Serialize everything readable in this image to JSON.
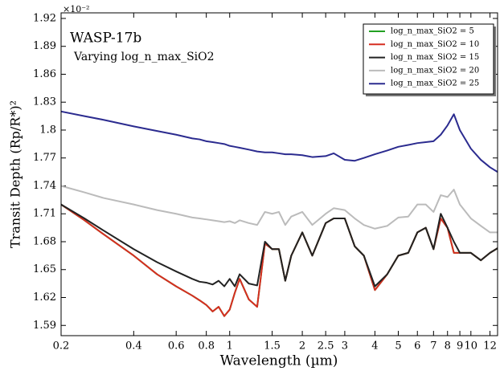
{
  "chart_data": {
    "type": "line",
    "title": "WASP-17b",
    "subtitle": "Varying log_n_max_SiO2",
    "x_label": "Wavelength (µm)",
    "y_label": "Transit Depth (Rp/R*)²",
    "y_offset_label": "×10⁻²",
    "x_scale": "log",
    "legend": "upper right",
    "grid": false,
    "x": [
      0.2,
      0.25,
      0.3,
      0.4,
      0.5,
      0.6,
      0.7,
      0.75,
      0.8,
      0.85,
      0.9,
      0.95,
      1.0,
      1.05,
      1.1,
      1.2,
      1.3,
      1.4,
      1.5,
      1.6,
      1.7,
      1.8,
      2.0,
      2.2,
      2.5,
      2.7,
      3.0,
      3.3,
      3.6,
      4.0,
      4.5,
      5.0,
      5.5,
      6.0,
      6.5,
      7.0,
      7.5,
      8.0,
      8.5,
      9.0,
      10,
      11,
      12,
      12.9
    ],
    "series": [
      {
        "name": "log_n_max_SiO2 = 5",
        "color": "#22a022",
        "values": [
          1.72,
          1.703,
          1.688,
          1.665,
          1.645,
          1.632,
          1.622,
          1.617,
          1.612,
          1.605,
          1.61,
          1.6,
          1.607,
          1.625,
          1.64,
          1.618,
          1.61,
          1.678,
          1.672,
          1.672,
          1.638,
          1.665,
          1.69,
          1.665,
          1.7,
          1.705,
          1.705,
          1.675,
          1.665,
          1.628,
          1.645,
          1.665,
          1.668,
          1.69,
          1.695,
          1.672,
          1.705,
          1.695,
          1.668,
          1.668,
          1.668,
          1.66,
          1.668,
          1.673
        ]
      },
      {
        "name": "log_n_max_SiO2 = 10",
        "color": "#d62d20",
        "values": [
          1.72,
          1.703,
          1.688,
          1.665,
          1.645,
          1.632,
          1.622,
          1.617,
          1.612,
          1.605,
          1.61,
          1.6,
          1.607,
          1.625,
          1.64,
          1.618,
          1.61,
          1.678,
          1.672,
          1.672,
          1.638,
          1.665,
          1.69,
          1.665,
          1.7,
          1.705,
          1.705,
          1.675,
          1.665,
          1.628,
          1.645,
          1.665,
          1.668,
          1.69,
          1.695,
          1.672,
          1.705,
          1.695,
          1.668,
          1.668,
          1.668,
          1.66,
          1.668,
          1.673
        ]
      },
      {
        "name": "log_n_max_SiO2 = 15",
        "color": "#222222",
        "values": [
          1.72,
          1.705,
          1.692,
          1.672,
          1.658,
          1.648,
          1.64,
          1.637,
          1.636,
          1.634,
          1.638,
          1.632,
          1.64,
          1.632,
          1.645,
          1.635,
          1.633,
          1.68,
          1.672,
          1.672,
          1.638,
          1.665,
          1.69,
          1.665,
          1.7,
          1.705,
          1.705,
          1.675,
          1.665,
          1.632,
          1.645,
          1.665,
          1.668,
          1.69,
          1.695,
          1.672,
          1.71,
          1.695,
          1.68,
          1.668,
          1.668,
          1.66,
          1.668,
          1.673
        ]
      },
      {
        "name": "log_n_max_SiO2 = 20",
        "color": "#bbbbbb",
        "values": [
          1.74,
          1.733,
          1.727,
          1.72,
          1.714,
          1.71,
          1.706,
          1.705,
          1.704,
          1.703,
          1.702,
          1.701,
          1.702,
          1.7,
          1.703,
          1.7,
          1.698,
          1.712,
          1.71,
          1.712,
          1.698,
          1.707,
          1.712,
          1.698,
          1.71,
          1.716,
          1.714,
          1.705,
          1.698,
          1.694,
          1.697,
          1.706,
          1.707,
          1.72,
          1.72,
          1.712,
          1.73,
          1.728,
          1.736,
          1.72,
          1.705,
          1.697,
          1.69,
          1.69
        ]
      },
      {
        "name": "log_n_max_SiO2 = 25",
        "color": "#2b2b8f",
        "values": [
          1.82,
          1.815,
          1.811,
          1.804,
          1.799,
          1.795,
          1.791,
          1.79,
          1.788,
          1.787,
          1.786,
          1.785,
          1.783,
          1.782,
          1.781,
          1.779,
          1.777,
          1.776,
          1.776,
          1.775,
          1.774,
          1.774,
          1.773,
          1.771,
          1.772,
          1.775,
          1.768,
          1.767,
          1.77,
          1.774,
          1.778,
          1.782,
          1.784,
          1.786,
          1.787,
          1.788,
          1.795,
          1.805,
          1.817,
          1.8,
          1.78,
          1.768,
          1.76,
          1.755
        ]
      }
    ],
    "xlim": [
      0.2,
      12.9
    ],
    "ylim": [
      1.579,
      1.926
    ],
    "xticks": [
      0.2,
      0.4,
      0.6,
      0.8,
      1,
      1.5,
      2,
      2.5,
      3,
      4,
      5,
      6,
      7,
      8,
      9,
      10,
      12
    ],
    "yticks": [
      1.59,
      1.62,
      1.65,
      1.68,
      1.71,
      1.74,
      1.77,
      1.8,
      1.83,
      1.86,
      1.89,
      1.92
    ]
  }
}
